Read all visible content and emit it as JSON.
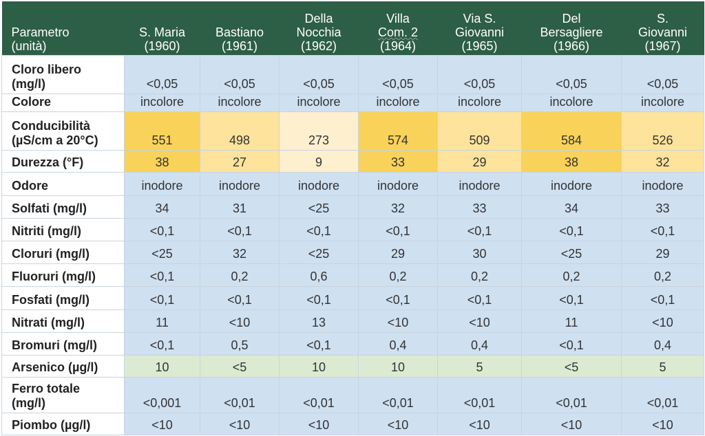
{
  "header": {
    "param": [
      "Parametro",
      "(unità)"
    ],
    "sites": [
      {
        "lines": [
          "S. Maria",
          "(1960)"
        ]
      },
      {
        "lines": [
          "Bastiano",
          "(1961)"
        ]
      },
      {
        "lines": [
          "Della",
          "Nocchia",
          "(1962)"
        ]
      },
      {
        "lines": [
          "Villa",
          "Com. 2",
          "(1964)"
        ]
      },
      {
        "lines": [
          "Via S.",
          "Giovanni",
          "(1965)"
        ]
      },
      {
        "lines": [
          "Del",
          "Bersagliere",
          "(1966)"
        ]
      },
      {
        "lines": [
          "S.",
          "Giovanni",
          "(1967)"
        ]
      }
    ]
  },
  "rows": [
    {
      "label": [
        "Cloro libero",
        "(mg/l)"
      ],
      "values": [
        "<0,05",
        "<0,05",
        "<0,05",
        "<0,05",
        "<0,05",
        "<0,05",
        "<0,05"
      ],
      "shade": [
        "",
        "",
        "",
        "",
        "",
        "",
        ""
      ],
      "h": 56
    },
    {
      "label": [
        "Colore"
      ],
      "values": [
        "incolore",
        "incolore",
        "incolore",
        "incolore",
        "incolore",
        "incolore",
        "incolore"
      ],
      "shade": [
        "",
        "",
        "",
        "",
        "",
        "",
        ""
      ],
      "h": 26
    },
    {
      "label": [
        "Conducibilità",
        "(µS/cm a 20°C)"
      ],
      "values": [
        "551",
        "498",
        "273",
        "574",
        "509",
        "584",
        "526"
      ],
      "shade": [
        "y3",
        "y2",
        "y1",
        "y3",
        "y2",
        "y3",
        "y2"
      ],
      "h": 56
    },
    {
      "label": [
        "Durezza (°F)"
      ],
      "values": [
        "38",
        "27",
        "9",
        "33",
        "29",
        "38",
        "32"
      ],
      "shade": [
        "y3",
        "y2",
        "y1",
        "y3",
        "y2",
        "y3",
        "y2"
      ],
      "h": 32
    },
    {
      "label": [
        "Odore"
      ],
      "values": [
        "inodore",
        "inodore",
        "inodore",
        "inodore",
        "inodore",
        "inodore",
        "inodore"
      ],
      "shade": [
        "",
        "",
        "",
        "",
        "",
        "",
        ""
      ],
      "h": 34
    },
    {
      "label": [
        "Solfati (mg/l)"
      ],
      "values": [
        "34",
        "31",
        "<25",
        "32",
        "33",
        "34",
        "33"
      ],
      "shade": [
        "",
        "",
        "",
        "",
        "",
        "",
        ""
      ],
      "h": 33
    },
    {
      "label": [
        "Nitriti (mg/l)"
      ],
      "values": [
        "<0,1",
        "<0,1",
        "<0,1",
        "<0,1",
        "<0,1",
        "<0,1",
        "<0,1"
      ],
      "shade": [
        "",
        "",
        "",
        "",
        "",
        "",
        ""
      ],
      "h": 33
    },
    {
      "label": [
        "Cloruri (mg/l)"
      ],
      "values": [
        "<25",
        "32",
        "<25",
        "29",
        "30",
        "<25",
        "29"
      ],
      "shade": [
        "",
        "",
        "",
        "",
        "",
        "",
        ""
      ],
      "h": 33
    },
    {
      "label": [
        "Fluoruri (mg/l)"
      ],
      "values": [
        "<0,1",
        "0,2",
        "0,6",
        "0,2",
        "0,2",
        "0,2",
        "0,2"
      ],
      "shade": [
        "",
        "",
        "",
        "",
        "",
        "",
        ""
      ],
      "h": 33
    },
    {
      "label": [
        "Fosfati (mg/l)"
      ],
      "values": [
        "<0,1",
        "<0,1",
        "<0,1",
        "<0,1",
        "<0,1",
        "<0,1",
        "<0,1"
      ],
      "shade": [
        "",
        "",
        "",
        "",
        "",
        "",
        ""
      ],
      "h": 34
    },
    {
      "label": [
        "Nitrati (mg/l)"
      ],
      "values": [
        "11",
        "<10",
        "13",
        "<10",
        "<10",
        "11",
        "<10"
      ],
      "shade": [
        "",
        "",
        "",
        "",
        "",
        "",
        ""
      ],
      "h": 33
    },
    {
      "label": [
        "Bromuri (mg/l)"
      ],
      "values": [
        "<0,1",
        "0,5",
        "<0,1",
        "0,4",
        "0,4",
        "<0,1",
        "0,4"
      ],
      "shade": [
        "",
        "",
        "",
        "",
        "",
        "",
        ""
      ],
      "h": 33
    },
    {
      "label": [
        "Arsenico (µg/l)"
      ],
      "values": [
        "10",
        "<5",
        "10",
        "10",
        "5",
        "<5",
        "5"
      ],
      "shade": [
        "g",
        "g",
        "g",
        "g",
        "g",
        "g",
        "g"
      ],
      "h": 32
    },
    {
      "label": [
        "Ferro totale",
        "(mg/l)"
      ],
      "values": [
        "<0,001",
        "<0,01",
        "<0,01",
        "<0,01",
        "<0,01",
        "<0,01",
        "<0,01"
      ],
      "shade": [
        "",
        "",
        "",
        "",
        "",
        "",
        ""
      ],
      "h": 52
    },
    {
      "label": [
        "Piombo (µg/l)"
      ],
      "values": [
        "<10",
        "<10",
        "<10",
        "<10",
        "<10",
        "<10",
        "<10"
      ],
      "shade": [
        "",
        "",
        "",
        "",
        "",
        "",
        ""
      ],
      "h": 32
    }
  ],
  "colors": {
    "header": "#2d5e46",
    "cell": "#cfe0f1",
    "high": "#f8d259",
    "mid": "#fde39b",
    "low": "#feefcf",
    "arsenic": "#dcead2"
  }
}
